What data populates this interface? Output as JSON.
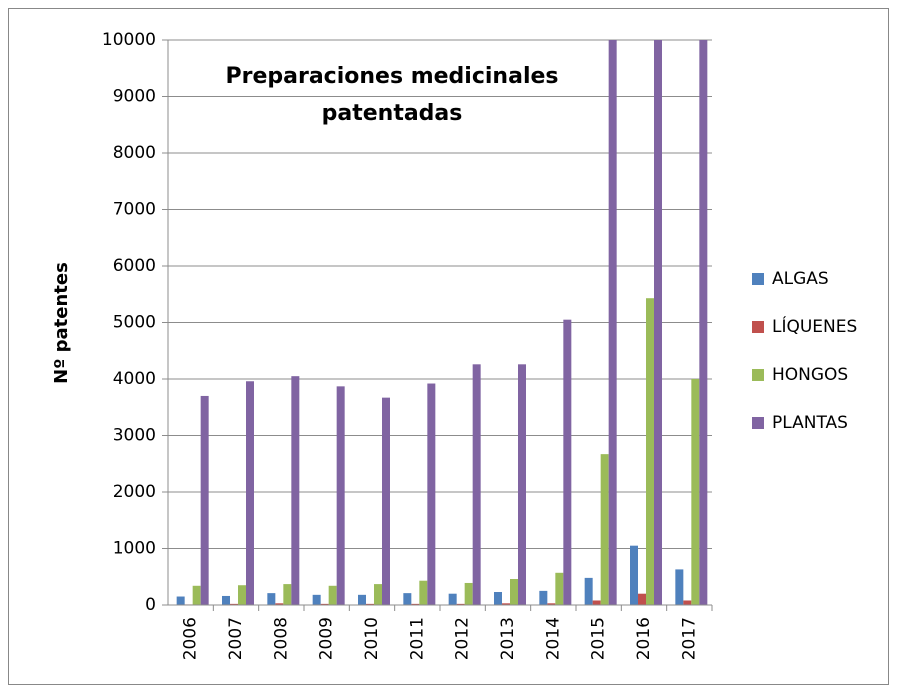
{
  "chart_data": {
    "type": "bar",
    "title": "Preparaciones medicinales patentadas",
    "y_label": "Nº patentes",
    "categories": [
      "2006",
      "2007",
      "2008",
      "2009",
      "2010",
      "2011",
      "2012",
      "2013",
      "2014",
      "2015",
      "2016",
      "2017"
    ],
    "series": [
      {
        "name": "ALGAS",
        "color": "#4f81bd",
        "values": [
          150,
          160,
          210,
          180,
          180,
          210,
          200,
          230,
          250,
          480,
          1050,
          630
        ]
      },
      {
        "name": "LÍQUENES",
        "color": "#c0504d",
        "values": [
          10,
          20,
          30,
          20,
          20,
          20,
          20,
          30,
          30,
          80,
          200,
          80
        ]
      },
      {
        "name": "HONGOS",
        "color": "#9bbb59",
        "values": [
          340,
          350,
          370,
          340,
          370,
          430,
          390,
          460,
          570,
          2670,
          5430,
          4000
        ]
      },
      {
        "name": "PLANTAS",
        "color": "#8064a2",
        "values": [
          3700,
          3960,
          4050,
          3870,
          3670,
          3920,
          4260,
          4260,
          5050,
          10000,
          10000,
          10000
        ]
      }
    ],
    "ylim": [
      0,
      10000
    ],
    "yticks": [
      0,
      1000,
      2000,
      3000,
      4000,
      5000,
      6000,
      7000,
      8000,
      9000,
      10000
    ],
    "grid": true,
    "legend": "right"
  }
}
